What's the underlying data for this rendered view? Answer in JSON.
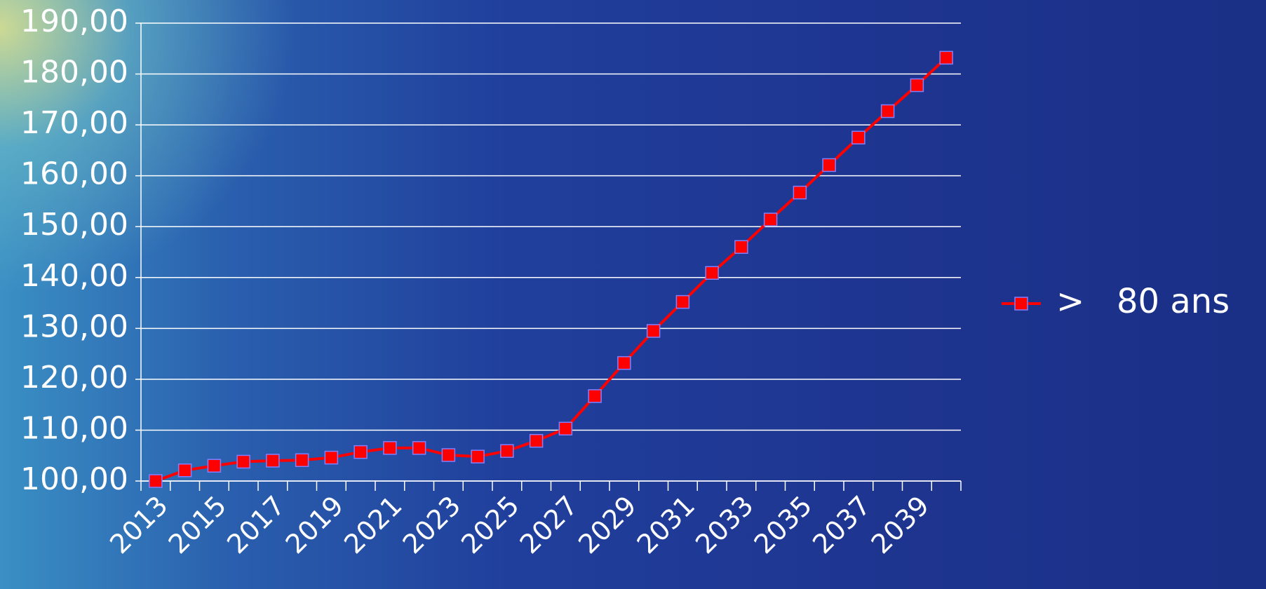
{
  "chart_data": {
    "type": "line",
    "categories": [
      "2013",
      null,
      "2015",
      null,
      "2017",
      null,
      "2019",
      null,
      "2021",
      null,
      "2023",
      null,
      "2025",
      null,
      "2027",
      null,
      "2029",
      null,
      "2031",
      null,
      "2033",
      null,
      "2035",
      null,
      "2037",
      null,
      "2039",
      null
    ],
    "series": [
      {
        "name": ">   80 ans",
        "color": "#ff0000",
        "values": [
          100,
          102.1,
          103.0,
          103.8,
          104.0,
          104.1,
          104.6,
          105.7,
          106.5,
          106.5,
          105.1,
          104.8,
          105.9,
          107.9,
          110.3,
          116.7,
          123.2,
          129.5,
          135.2,
          140.9,
          146.0,
          151.4,
          156.7,
          162.1,
          167.5,
          172.7,
          177.8,
          183.2
        ]
      }
    ],
    "ylim": [
      100,
      190
    ],
    "yticks": [
      {
        "value": 100,
        "label": "100,00"
      },
      {
        "value": 110,
        "label": "110,00"
      },
      {
        "value": 120,
        "label": "120,00"
      },
      {
        "value": 130,
        "label": "130,00"
      },
      {
        "value": 140,
        "label": "140,00"
      },
      {
        "value": 150,
        "label": "150,00"
      },
      {
        "value": 160,
        "label": "160,00"
      },
      {
        "value": 170,
        "label": "170,00"
      },
      {
        "value": 180,
        "label": "180,00"
      },
      {
        "value": 190,
        "label": "190,00"
      }
    ],
    "grid": true,
    "legend": "right"
  }
}
